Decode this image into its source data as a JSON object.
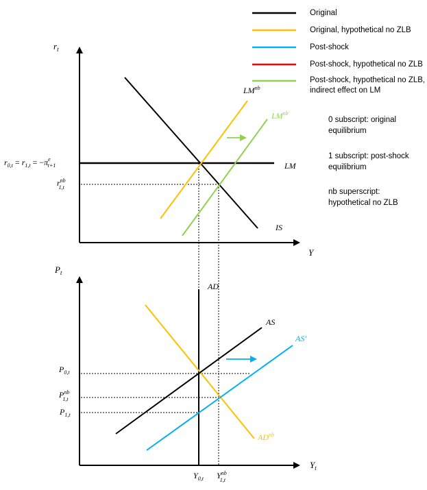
{
  "colors": {
    "original": "#000000",
    "original_no_zlb": "#ffc000",
    "post_shock": "#00b0f0",
    "post_shock_no_zlb": "#ff0000",
    "post_shock_no_zlb_indirect": "#92d050",
    "axis": "#000000",
    "dashed": "#000000"
  },
  "legend": [
    {
      "key": "original",
      "lines": [
        "Original"
      ]
    },
    {
      "key": "original_no_zlb",
      "lines": [
        "Original, hypothetical no ZLB"
      ]
    },
    {
      "key": "post_shock",
      "lines": [
        "Post-shock"
      ]
    },
    {
      "key": "post_shock_no_zlb",
      "lines": [
        "Post-shock, hypothetical no ZLB"
      ]
    },
    {
      "key": "post_shock_no_zlb_indirect",
      "lines": [
        "Post-shock, hypothetical no ZLB,",
        "indirect effect on LM"
      ]
    }
  ],
  "notes": [
    [
      "0 subscript: original",
      "equilibrium"
    ],
    [
      "1 subscript: post-shock",
      "equilibrium"
    ],
    [
      "nb superscript:",
      "hypothetical no ZLB"
    ]
  ],
  "top_panel": {
    "y_axis_label": {
      "main": "r",
      "sub": "t"
    },
    "x_axis_label": "Y",
    "curves": {
      "LM": "LM",
      "LMnb": {
        "main": "LM",
        "sup": "nb"
      },
      "LMnb_prime": {
        "main": "LM",
        "sup": "nb′"
      },
      "IS": "IS"
    },
    "rate_label": {
      "r0": "r",
      "r0_sub": "0,t",
      "eq1": " = ",
      "r1": "r",
      "r1_sub": "1,t",
      "eq2": " = −",
      "pi": "π",
      "pi_sup": "e",
      "pi_sub": "t+1"
    },
    "rnb_label": {
      "main": "r",
      "sup": "nb",
      "sub": "1,t"
    }
  },
  "bottom_panel": {
    "y_axis_label": {
      "main": "P",
      "sub": "t"
    },
    "x_axis_label": {
      "main": "Y",
      "sub": "t"
    },
    "curves": {
      "AD": "AD",
      "ADnb": {
        "main": "AD",
        "sup": "nb"
      },
      "AS": "AS",
      "AS_prime": "AS′"
    },
    "price_labels": {
      "P0": {
        "main": "P",
        "sub": "0,t"
      },
      "Pnb": {
        "main": "P",
        "sup": "nb",
        "sub": "1,t"
      },
      "P1": {
        "main": "P",
        "sub": "1,t"
      }
    },
    "output_labels": {
      "Y0": {
        "main": "Y",
        "sub": "0,t"
      },
      "Ynb": {
        "main": "Y",
        "sup": "nb",
        "sub": "1,t"
      }
    }
  }
}
